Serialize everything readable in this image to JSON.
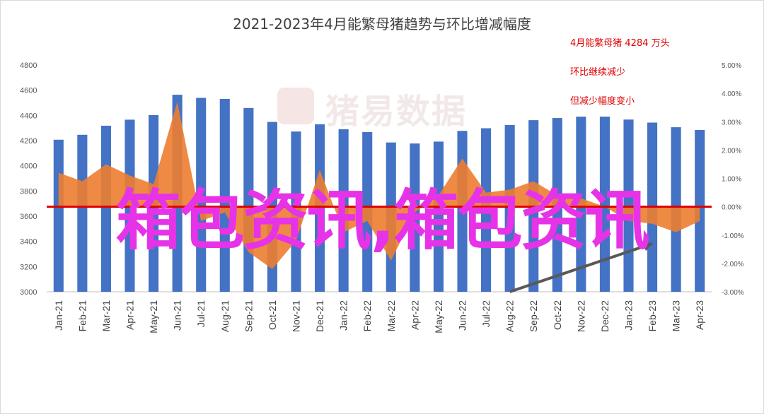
{
  "chart_data": {
    "type": "bar",
    "title": "2021-2023年4月能繁母猪趋势与环比增减幅度",
    "categories": [
      "Jan-21",
      "Feb-21",
      "Mar-21",
      "Apr-21",
      "May-21",
      "Jun-21",
      "Jul-21",
      "Aug-21",
      "Sep-21",
      "Oct-21",
      "Nov-21",
      "Dec-21",
      "Jan-22",
      "Feb-22",
      "Mar-22",
      "Apr-22",
      "May-22",
      "Jun-22",
      "Jul-22",
      "Aug-22",
      "Sep-22",
      "Oct-22",
      "Nov-22",
      "Dec-22",
      "Jan-23",
      "Feb-23",
      "Mar-23",
      "Apr-23"
    ],
    "series": [
      {
        "type": "bar",
        "axis": "left",
        "color": "#4472c4",
        "values": [
          4207,
          4246,
          4318,
          4366,
          4402,
          4564,
          4539,
          4531,
          4459,
          4348,
          4272,
          4329,
          4290,
          4268,
          4185,
          4177,
          4192,
          4277,
          4298,
          4324,
          4362,
          4379,
          4390,
          4390,
          4367,
          4343,
          4306,
          4284
        ]
      },
      {
        "type": "area",
        "axis": "right",
        "color": "#ed7d31",
        "values": [
          1.2,
          0.9,
          1.5,
          1.1,
          0.8,
          3.7,
          -0.5,
          -0.2,
          -1.6,
          -2.2,
          -1.2,
          1.3,
          -0.9,
          -0.5,
          -1.9,
          -0.2,
          0.4,
          1.7,
          0.5,
          0.6,
          0.9,
          0.4,
          0.3,
          0.0,
          -0.5,
          -0.6,
          -0.9,
          -0.5
        ]
      }
    ],
    "y_left": {
      "min": 3000,
      "max": 4800,
      "step": 200,
      "ticks": [
        "3000",
        "3200",
        "3400",
        "3600",
        "3800",
        "4000",
        "4200",
        "4400",
        "4600",
        "4800"
      ]
    },
    "y_right": {
      "min": -3,
      "max": 5,
      "step": 1,
      "ticks": [
        "-3.00%",
        "-2.00%",
        "-1.00%",
        "0.00%",
        "1.00%",
        "2.00%",
        "3.00%",
        "4.00%",
        "5.00%"
      ]
    },
    "reference_line": {
      "axis": "right",
      "value": 0,
      "color": "#e00000"
    },
    "trend_arrow": {
      "axis": "right",
      "from": {
        "x": "Aug-22",
        "y": -3.0
      },
      "to": {
        "x": "Feb-23",
        "y": -1.3
      },
      "color": "#595959"
    },
    "annotations": [
      "4月能繁母猪 4284 万头",
      "环比继续减少",
      "但减少幅度变小"
    ],
    "grid": false,
    "legend": "none"
  },
  "watermark": {
    "text": "猪易数据"
  },
  "overlay_text": "箱包资讯,箱包资讯"
}
